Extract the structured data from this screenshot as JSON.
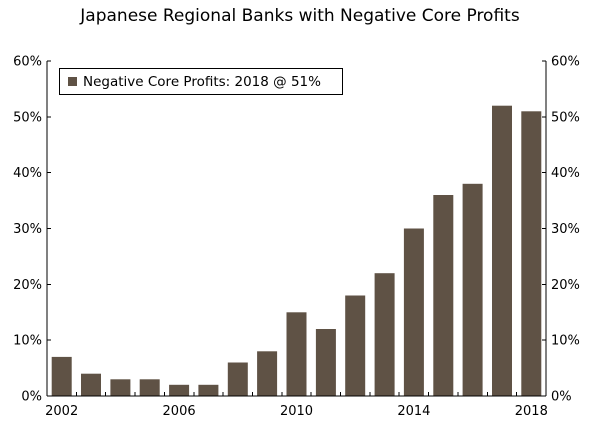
{
  "chart_data": {
    "type": "bar",
    "title": "Japanese Regional Banks with Negative Core Profits",
    "legend": "Negative Core Profits: 2018 @ 51%",
    "legend_position": "top-left",
    "x": [
      2002,
      2003,
      2004,
      2005,
      2006,
      2007,
      2008,
      2009,
      2010,
      2011,
      2012,
      2013,
      2014,
      2015,
      2016,
      2017,
      2018
    ],
    "values": [
      7,
      4,
      3,
      3,
      2,
      2,
      6,
      8,
      15,
      12,
      18,
      22,
      30,
      36,
      38,
      52,
      51
    ],
    "x_tick_labels": [
      "2002",
      "2006",
      "2010",
      "2014",
      "2018"
    ],
    "y_tick_labels": [
      "0%",
      "10%",
      "20%",
      "30%",
      "40%",
      "50%",
      "60%"
    ],
    "ylim": [
      0,
      60
    ],
    "xlabel": "",
    "ylabel": "",
    "grid": false,
    "bar_color": "#5f5245"
  }
}
